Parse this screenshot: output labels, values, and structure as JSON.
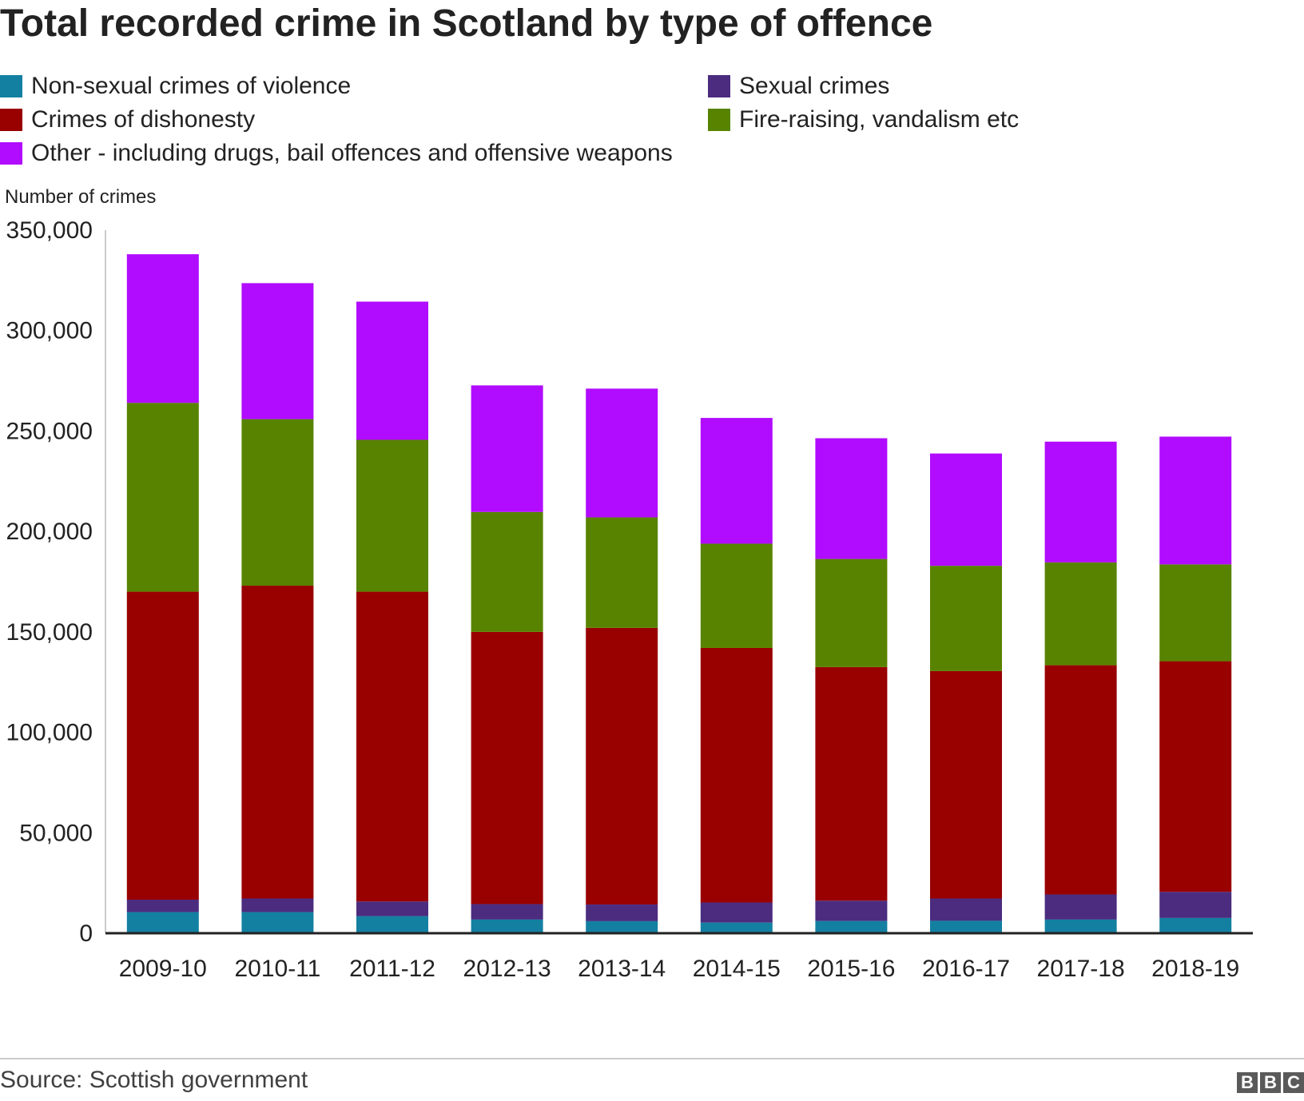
{
  "colors": {
    "violence": "#1380A1",
    "sexual": "#4B2C7F",
    "dishonesty": "#990000",
    "fire_raising": "#588300",
    "other": "#B10CFF",
    "axis": "#222222"
  },
  "legend": [
    {
      "key": "violence",
      "label": "Non-sexual crimes of violence"
    },
    {
      "key": "sexual",
      "label": "Sexual crimes"
    },
    {
      "key": "dishonesty",
      "label": "Crimes of dishonesty"
    },
    {
      "key": "fire_raising",
      "label": "Fire-raising, vandalism etc"
    },
    {
      "key": "other",
      "label": "Other - including drugs, bail offences and offensive weapons"
    }
  ],
  "footer": {
    "source": "Source: Scottish government",
    "logo": [
      "B",
      "B",
      "C"
    ]
  },
  "chart_data": {
    "type": "bar",
    "stacked": true,
    "title": "Total recorded crime in Scotland by type of offence",
    "ylabel": "Number of crimes",
    "xlabel": "",
    "ylim": [
      0,
      350000
    ],
    "yticks": [
      0,
      50000,
      100000,
      150000,
      200000,
      250000,
      300000,
      350000
    ],
    "ytick_labels": [
      "0",
      "50,000",
      "100,000",
      "150,000",
      "200,000",
      "250,000",
      "300,000",
      "350,000"
    ],
    "grid": false,
    "legend_position": "top",
    "categories": [
      "2009-10",
      "2010-11",
      "2011-12",
      "2012-13",
      "2013-14",
      "2014-15",
      "2015-16",
      "2016-17",
      "2017-18",
      "2018-19"
    ],
    "series": [
      {
        "key": "violence",
        "name": "Non-sexual crimes of violence",
        "values": [
          10500,
          10500,
          8500,
          6800,
          6000,
          5300,
          6100,
          6200,
          6800,
          7600
        ]
      },
      {
        "key": "sexual",
        "name": "Sexual crimes",
        "values": [
          6200,
          6800,
          7300,
          7700,
          8300,
          10000,
          10100,
          11100,
          12500,
          13000
        ]
      },
      {
        "key": "dishonesty",
        "name": "Crimes of dishonesty",
        "values": [
          153300,
          155700,
          154200,
          135500,
          137700,
          126700,
          116300,
          113200,
          114100,
          114800
        ]
      },
      {
        "key": "fire_raising",
        "name": "Fire-raising, vandalism etc",
        "values": [
          94000,
          82900,
          75600,
          59700,
          55000,
          51900,
          53800,
          52400,
          51200,
          48200
        ]
      },
      {
        "key": "other",
        "name": "Other - including drugs, bail offences and offensive weapons",
        "values": [
          74000,
          67700,
          68800,
          63000,
          64100,
          62600,
          60100,
          55900,
          60100,
          63600
        ]
      }
    ]
  }
}
